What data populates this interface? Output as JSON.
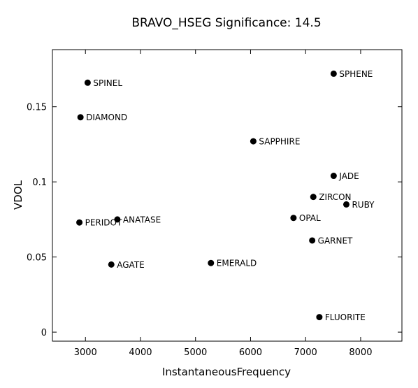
{
  "chart_data": {
    "type": "scatter",
    "title": "BRAVO_HSEG  Significance:  14.5",
    "xlabel": "InstantaneousFrequency",
    "ylabel": "VDOL",
    "xlim": [
      2400,
      8750
    ],
    "ylim": [
      -0.006,
      0.188
    ],
    "x_ticks": [
      3000,
      4000,
      5000,
      6000,
      7000,
      8000
    ],
    "x_tick_labels": [
      "3000",
      "4000",
      "5000",
      "6000",
      "7000",
      "8000"
    ],
    "y_ticks": [
      0,
      0.05,
      0.1,
      0.15
    ],
    "y_tick_labels": [
      "0",
      "0.05",
      "0.1",
      "0.15"
    ],
    "grid": false,
    "legend": "none",
    "points": [
      {
        "label": "SPINEL",
        "x": 3040,
        "y": 0.166
      },
      {
        "label": "SPHENE",
        "x": 7510,
        "y": 0.172
      },
      {
        "label": "DIAMOND",
        "x": 2910,
        "y": 0.143
      },
      {
        "label": "SAPPHIRE",
        "x": 6050,
        "y": 0.127
      },
      {
        "label": "JADE",
        "x": 7510,
        "y": 0.104
      },
      {
        "label": "ZIRCON",
        "x": 7140,
        "y": 0.09
      },
      {
        "label": "RUBY",
        "x": 7740,
        "y": 0.085
      },
      {
        "label": "OPAL",
        "x": 6780,
        "y": 0.076
      },
      {
        "label": "PERIDOT",
        "x": 2890,
        "y": 0.073
      },
      {
        "label": "ANATASE",
        "x": 3580,
        "y": 0.075
      },
      {
        "label": "GARNET",
        "x": 7120,
        "y": 0.061
      },
      {
        "label": "AGATE",
        "x": 3470,
        "y": 0.045
      },
      {
        "label": "EMERALD",
        "x": 5280,
        "y": 0.046
      },
      {
        "label": "FLUORITE",
        "x": 7250,
        "y": 0.01
      }
    ]
  }
}
